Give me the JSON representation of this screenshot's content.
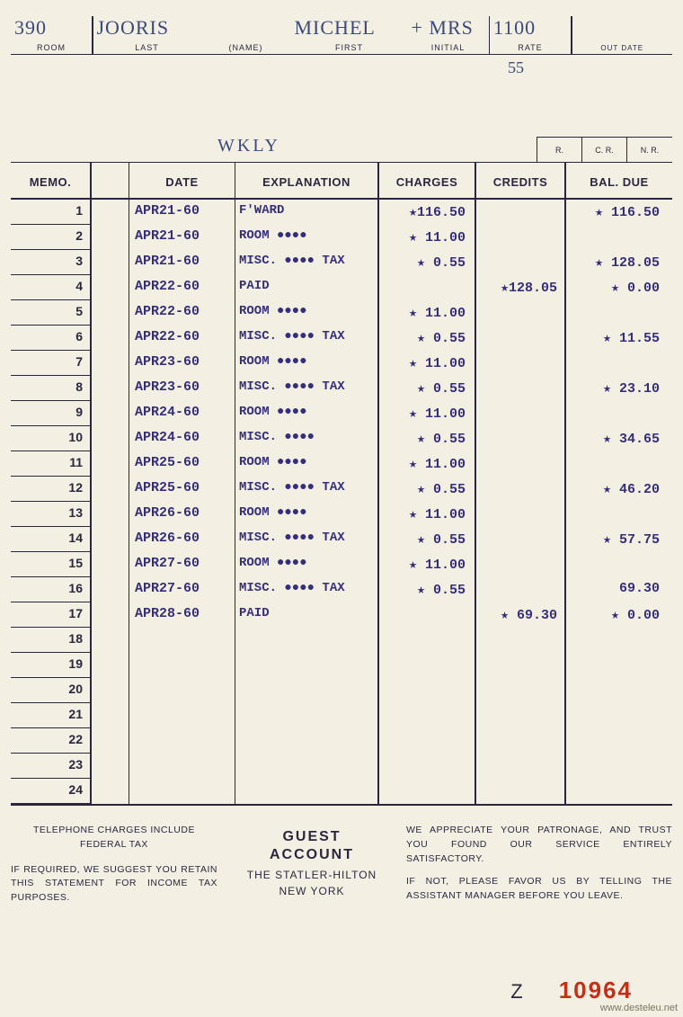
{
  "header": {
    "room": "390",
    "last": "JOORIS",
    "first": "MICHEL",
    "initial": "+ MRS",
    "rate_hand": "1100",
    "rate_sub": "55",
    "out_date": "",
    "labels": {
      "room": "ROOM",
      "last": "LAST",
      "name": "(NAME)",
      "first": "FIRST",
      "initial": "INITIAL",
      "rate": "RATE",
      "outdate": "OUT DATE"
    },
    "note": "WKLY",
    "rcrnr": [
      "R.",
      "C. R.",
      "N. R."
    ]
  },
  "columns": {
    "memo": "MEMO.",
    "date": "DATE",
    "explanation": "EXPLANATION",
    "charges": "CHARGES",
    "credits": "CREDITS",
    "baldue": "BAL. DUE"
  },
  "rows": [
    {
      "n": "1",
      "date": "APR21-60",
      "expl": "F'WARD",
      "chg": "★116.50",
      "cred": "",
      "bal": "★ 116.50"
    },
    {
      "n": "2",
      "date": "APR21-60",
      "expl": "ROOM  ●●●●",
      "chg": "★ 11.00",
      "cred": "",
      "bal": ""
    },
    {
      "n": "3",
      "date": "APR21-60",
      "expl": "MISC. ●●●● TAX",
      "chg": "★  0.55",
      "cred": "",
      "bal": "★ 128.05"
    },
    {
      "n": "4",
      "date": "APR22-60",
      "expl": "PAID",
      "chg": "",
      "cred": "★128.05",
      "bal": "★   0.00"
    },
    {
      "n": "5",
      "date": "APR22-60",
      "expl": "ROOM  ●●●●",
      "chg": "★ 11.00",
      "cred": "",
      "bal": ""
    },
    {
      "n": "6",
      "date": "APR22-60",
      "expl": "MISC. ●●●● TAX",
      "chg": "★  0.55",
      "cred": "",
      "bal": "★  11.55"
    },
    {
      "n": "7",
      "date": "APR23-60",
      "expl": "ROOM  ●●●●",
      "chg": "★ 11.00",
      "cred": "",
      "bal": ""
    },
    {
      "n": "8",
      "date": "APR23-60",
      "expl": "MISC. ●●●● TAX",
      "chg": "★  0.55",
      "cred": "",
      "bal": "★  23.10"
    },
    {
      "n": "9",
      "date": "APR24-60",
      "expl": "ROOM  ●●●●",
      "chg": "★ 11.00",
      "cred": "",
      "bal": ""
    },
    {
      "n": "10",
      "date": "APR24-60",
      "expl": "MISC. ●●●●",
      "chg": "★  0.55",
      "cred": "",
      "bal": "★  34.65"
    },
    {
      "n": "11",
      "date": "APR25-60",
      "expl": "ROOM  ●●●●",
      "chg": "★ 11.00",
      "cred": "",
      "bal": ""
    },
    {
      "n": "12",
      "date": "APR25-60",
      "expl": "MISC. ●●●● TAX",
      "chg": "★  0.55",
      "cred": "",
      "bal": "★  46.20"
    },
    {
      "n": "13",
      "date": "APR26-60",
      "expl": "ROOM  ●●●●",
      "chg": "★ 11.00",
      "cred": "",
      "bal": ""
    },
    {
      "n": "14",
      "date": "APR26-60",
      "expl": "MISC. ●●●● TAX",
      "chg": "★  0.55",
      "cred": "",
      "bal": "★  57.75"
    },
    {
      "n": "15",
      "date": "APR27-60",
      "expl": "ROOM  ●●●●",
      "chg": "★ 11.00",
      "cred": "",
      "bal": ""
    },
    {
      "n": "16",
      "date": "APR27-60",
      "expl": "MISC. ●●●● TAX",
      "chg": "★  0.55",
      "cred": "",
      "bal": "69.30"
    },
    {
      "n": "17",
      "date": "APR28-60",
      "expl": "PAID",
      "chg": "",
      "cred": "★ 69.30",
      "bal": "★   0.00"
    },
    {
      "n": "18",
      "date": "",
      "expl": "",
      "chg": "",
      "cred": "",
      "bal": ""
    },
    {
      "n": "19",
      "date": "",
      "expl": "",
      "chg": "",
      "cred": "",
      "bal": ""
    },
    {
      "n": "20",
      "date": "",
      "expl": "",
      "chg": "",
      "cred": "",
      "bal": ""
    },
    {
      "n": "21",
      "date": "",
      "expl": "",
      "chg": "",
      "cred": "",
      "bal": ""
    },
    {
      "n": "22",
      "date": "",
      "expl": "",
      "chg": "",
      "cred": "",
      "bal": ""
    },
    {
      "n": "23",
      "date": "",
      "expl": "",
      "chg": "",
      "cred": "",
      "bal": ""
    },
    {
      "n": "24",
      "date": "",
      "expl": "",
      "chg": "",
      "cred": "",
      "bal": ""
    }
  ],
  "footer": {
    "left_1": "TELEPHONE CHARGES INCLUDE FEDERAL TAX",
    "left_2": "IF REQUIRED, WE SUGGEST YOU RETAIN THIS STATEMENT FOR INCOME TAX PURPOSES.",
    "center_1": "GUEST",
    "center_2": "ACCOUNT",
    "center_3": "THE STATLER-HILTON",
    "center_4": "NEW YORK",
    "right_1": "WE APPRECIATE YOUR PATRONAGE, AND TRUST YOU FOUND OUR SERVICE ENTIRELY SATISFACTORY.",
    "right_2": "IF NOT, PLEASE FAVOR US BY TELLING THE ASSISTANT MANAGER BEFORE YOU LEAVE."
  },
  "serial": {
    "prefix": "Z",
    "number": "10964"
  },
  "watermark": "www.desteleu.net",
  "style": {
    "paper_bg": "#f4efe3",
    "ink": "#2b2640",
    "stamp_ink": "#352e7a",
    "handwriting": "#3b4a7a",
    "serial_red": "#c23018"
  }
}
